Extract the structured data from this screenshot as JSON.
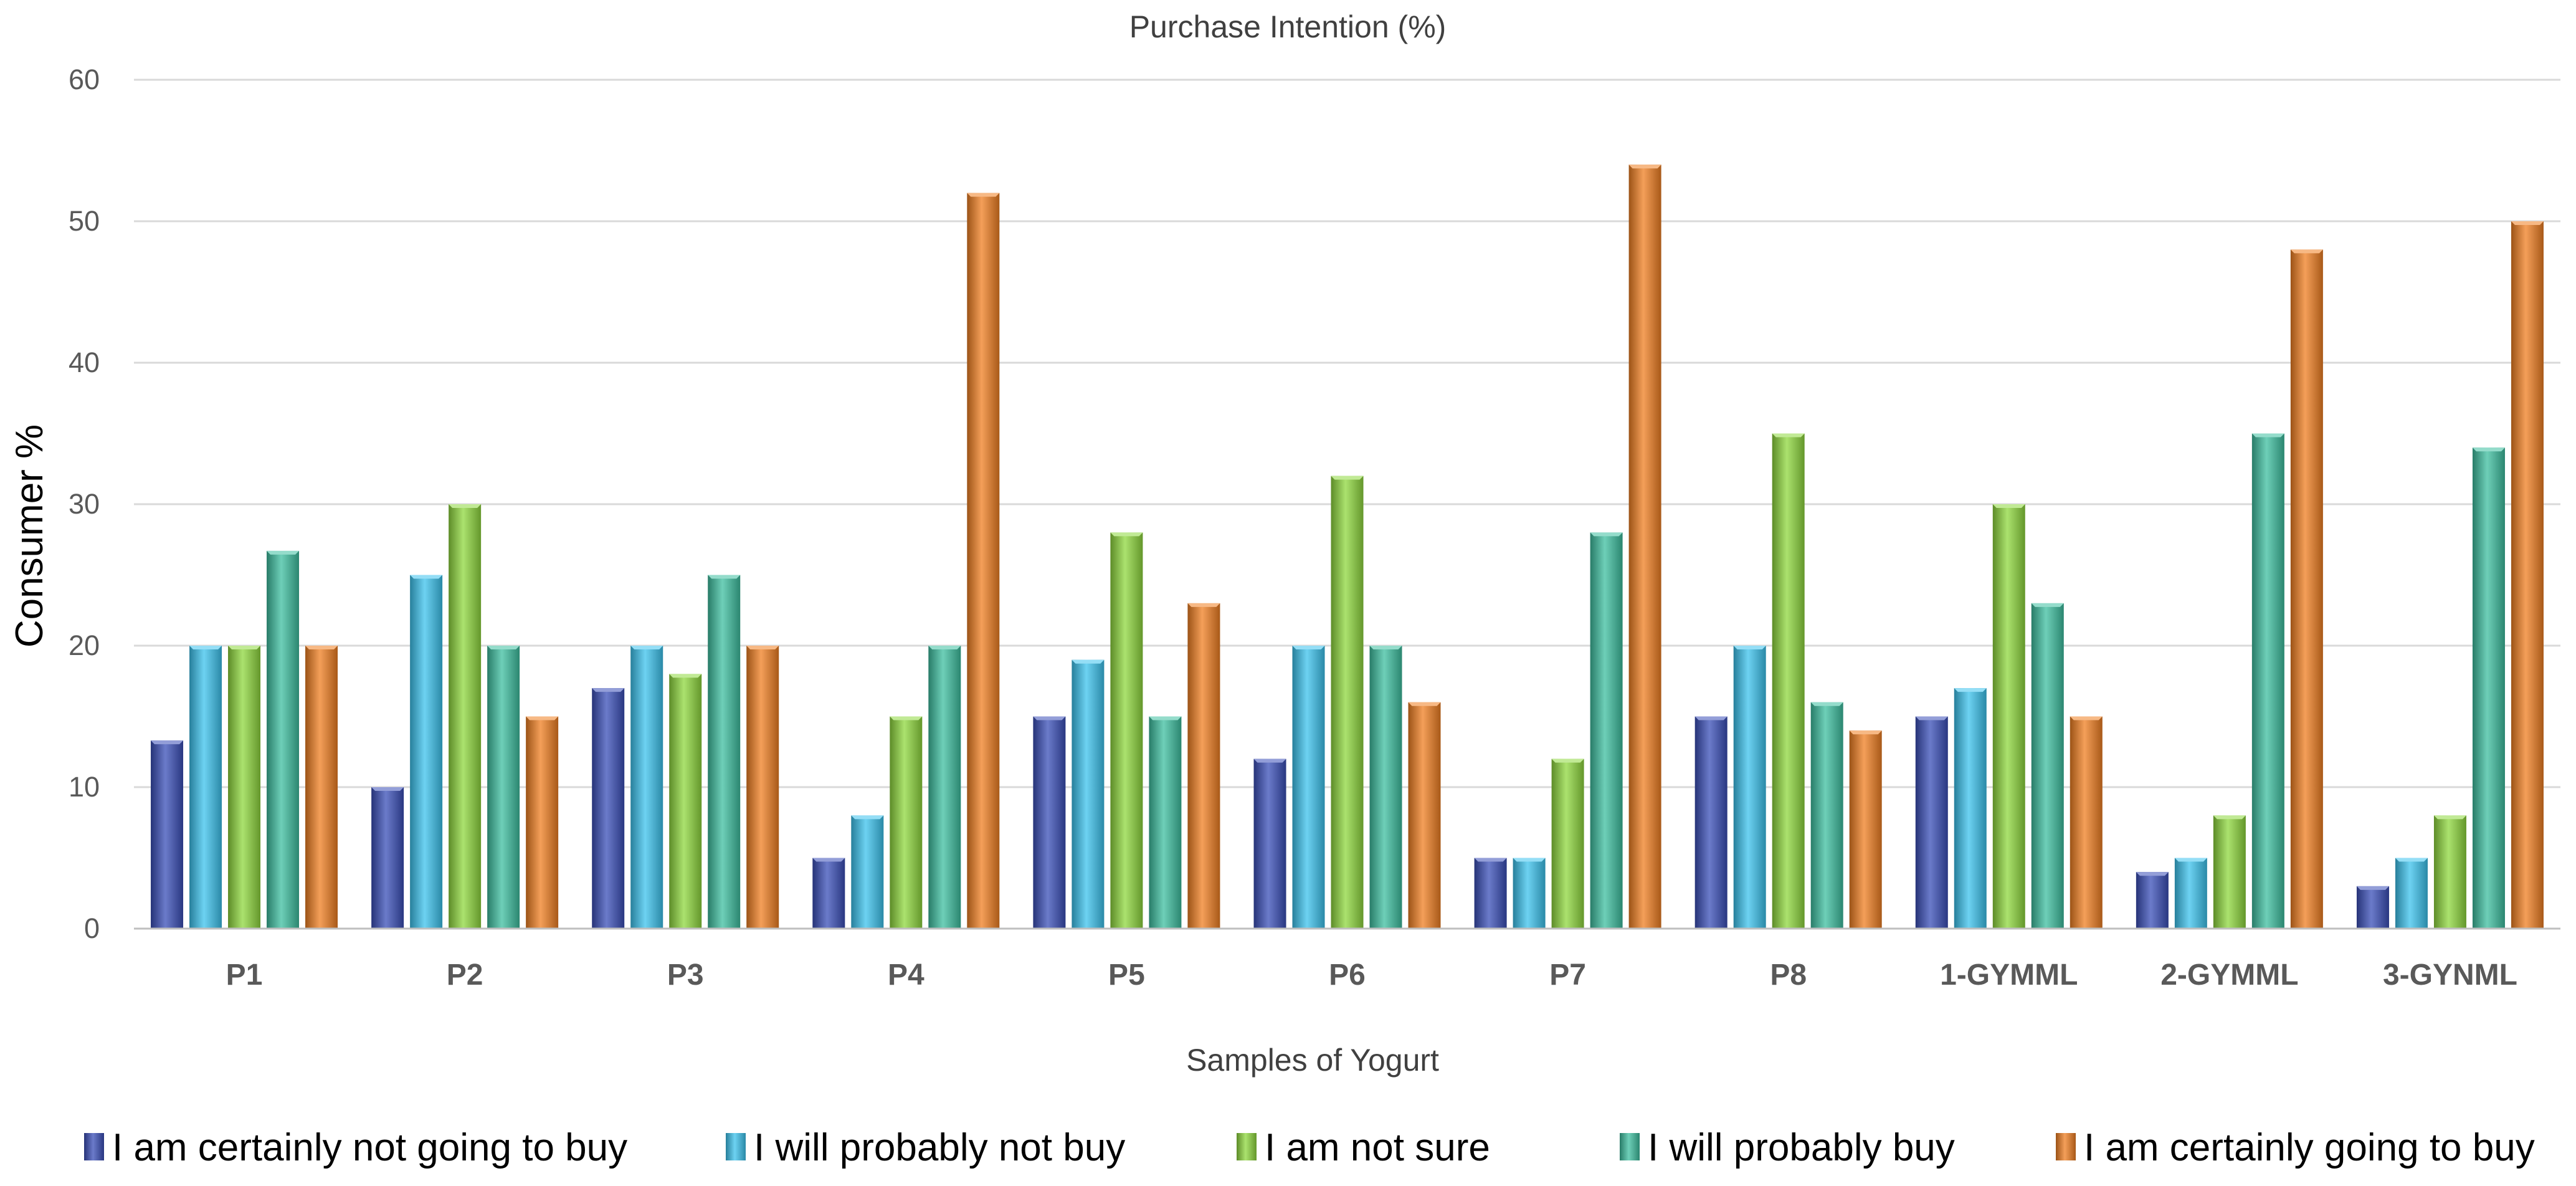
{
  "chart_data": {
    "type": "bar",
    "title": "Purchase Intention (%)",
    "xlabel": "Samples of Yogurt",
    "ylabel": "Consumer %",
    "ylim": [
      0,
      60
    ],
    "yticks": [
      0,
      10,
      20,
      30,
      40,
      50,
      60
    ],
    "grid": true,
    "legend_position": "bottom",
    "categories": [
      "P1",
      "P2",
      "P3",
      "P4",
      "P5",
      "P6",
      "P7",
      "P8",
      "1-GYMML",
      "2-GYMML",
      "3-GYNML"
    ],
    "series": [
      {
        "name": "I am certainly not going to buy",
        "color": "#3a4fb8",
        "values": [
          13.3,
          10,
          17,
          5,
          15,
          12,
          5,
          15,
          15,
          4,
          3
        ]
      },
      {
        "name": "I will probably not buy",
        "color": "#3cc3ee",
        "values": [
          20,
          25,
          20,
          8,
          19,
          20,
          5,
          20,
          17,
          5,
          5
        ]
      },
      {
        "name": "I am not sure",
        "color": "#8fd83e",
        "values": [
          20,
          30,
          18,
          15,
          28,
          32,
          12,
          35,
          30,
          8,
          8
        ]
      },
      {
        "name": "I will probably buy",
        "color": "#3dbfa0",
        "values": [
          26.7,
          20,
          25,
          20,
          15,
          20,
          28,
          16,
          23,
          35,
          34
        ]
      },
      {
        "name": "I am certainly going to buy",
        "color": "#f07f22",
        "values": [
          20,
          15,
          20,
          52,
          23,
          16,
          54,
          14,
          15,
          48,
          50
        ]
      }
    ]
  }
}
